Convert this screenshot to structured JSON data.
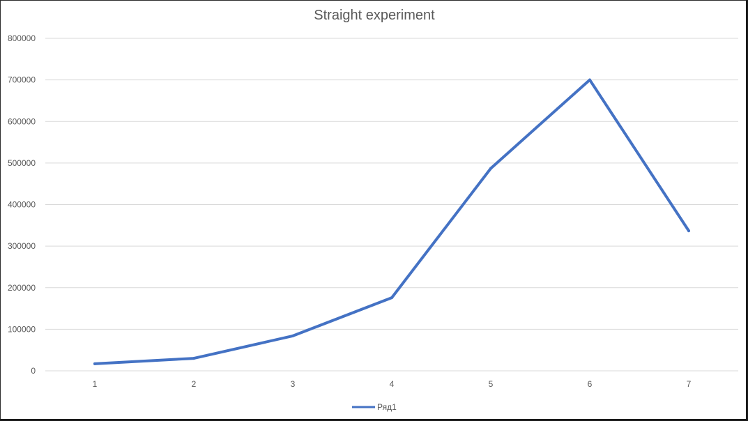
{
  "chart_data": {
    "type": "line",
    "title": "Straight experiment",
    "xlabel": "",
    "ylabel": "",
    "categories": [
      "1",
      "2",
      "3",
      "4",
      "5",
      "6",
      "7"
    ],
    "ylim": [
      0,
      800000
    ],
    "yticks": [
      "0",
      "100000",
      "200000",
      "300000",
      "400000",
      "500000",
      "600000",
      "700000",
      "800000"
    ],
    "grid": true,
    "legend": "bottom",
    "series": [
      {
        "name": "Ряд1",
        "color": "#4472c4",
        "values": [
          17000,
          30000,
          84000,
          176000,
          487000,
          700000,
          337000
        ]
      }
    ]
  }
}
